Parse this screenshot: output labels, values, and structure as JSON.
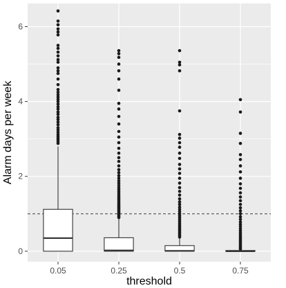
{
  "chart_data": {
    "type": "box",
    "title": "",
    "xlabel": "threshold",
    "ylabel": "Alarm days per week",
    "ylim": [
      -0.28,
      6.62
    ],
    "y_ticks": [
      0,
      2,
      4,
      6
    ],
    "y_tick_labels": [
      "0",
      "2",
      "4",
      "6"
    ],
    "categories": [
      "0.05",
      "0.25",
      "0.5",
      "0.75"
    ],
    "reference_line": {
      "y": 1.0,
      "style": "dashed"
    },
    "grid": true,
    "legend": "none",
    "colors": {
      "panel_background": "#ebebeb",
      "grid": "#ffffff",
      "box_fill": "#ffffff",
      "box_stroke": "#333333",
      "outlier": "#1a1a1a",
      "reference_line": "#4d4d4d",
      "tick_text": "#4d4d4d",
      "axis_title": "#000000"
    },
    "boxes": [
      {
        "category": "0.05",
        "lower_whisker": 0,
        "q1": 0,
        "median": 0.35,
        "q3": 1.12,
        "upper_whisker": 2.8,
        "outliers": [
          2.88,
          2.93,
          2.98,
          3.02,
          3.07,
          3.12,
          3.18,
          3.24,
          3.3,
          3.38,
          3.45,
          3.52,
          3.58,
          3.66,
          3.72,
          3.8,
          3.86,
          3.93,
          4.0,
          4.06,
          4.12,
          4.18,
          4.25,
          4.32,
          4.45,
          4.6,
          4.75,
          4.82,
          4.9,
          5.05,
          5.12,
          5.22,
          5.32,
          5.42,
          5.5,
          5.78,
          5.86,
          5.94,
          6.05,
          6.15,
          6.42
        ]
      },
      {
        "category": "0.25",
        "lower_whisker": 0,
        "q1": 0,
        "median": 0.02,
        "q3": 0.36,
        "upper_whisker": 0.88,
        "outliers": [
          0.9,
          0.93,
          0.96,
          0.99,
          1.02,
          1.05,
          1.08,
          1.11,
          1.14,
          1.17,
          1.2,
          1.23,
          1.26,
          1.3,
          1.34,
          1.38,
          1.42,
          1.46,
          1.5,
          1.55,
          1.6,
          1.65,
          1.7,
          1.76,
          1.82,
          1.88,
          1.95,
          2.02,
          2.1,
          2.18,
          2.28,
          2.4,
          2.5,
          2.62,
          2.75,
          2.9,
          3.05,
          3.2,
          3.4,
          3.6,
          3.8,
          3.95,
          4.3,
          4.6,
          4.82,
          5.0,
          5.18,
          5.28,
          5.36
        ]
      },
      {
        "category": "0.5",
        "lower_whisker": 0,
        "q1": 0,
        "median": 0.01,
        "q3": 0.15,
        "upper_whisker": 0.35,
        "outliers": [
          0.38,
          0.42,
          0.46,
          0.5,
          0.54,
          0.58,
          0.62,
          0.66,
          0.7,
          0.75,
          0.8,
          0.85,
          0.9,
          0.95,
          1.0,
          1.06,
          1.12,
          1.18,
          1.25,
          1.32,
          1.4,
          1.5,
          1.6,
          1.7,
          1.82,
          1.95,
          2.08,
          2.2,
          2.32,
          2.48,
          2.62,
          2.78,
          2.9,
          3.02,
          3.12,
          3.75,
          4.82,
          4.98,
          5.05,
          5.36
        ]
      },
      {
        "category": "0.75",
        "lower_whisker": 0,
        "q1": 0,
        "median": 0.0,
        "q3": 0.02,
        "upper_whisker": 0.04,
        "outliers": [
          0.06,
          0.09,
          0.12,
          0.16,
          0.2,
          0.24,
          0.28,
          0.32,
          0.36,
          0.4,
          0.45,
          0.5,
          0.55,
          0.6,
          0.66,
          0.72,
          0.78,
          0.85,
          0.92,
          1.0,
          1.08,
          1.16,
          1.25,
          1.35,
          1.45,
          1.56,
          1.68,
          1.8,
          1.95,
          2.12,
          2.28,
          2.45,
          2.58,
          2.88,
          3.15,
          3.72,
          4.05
        ]
      }
    ]
  }
}
